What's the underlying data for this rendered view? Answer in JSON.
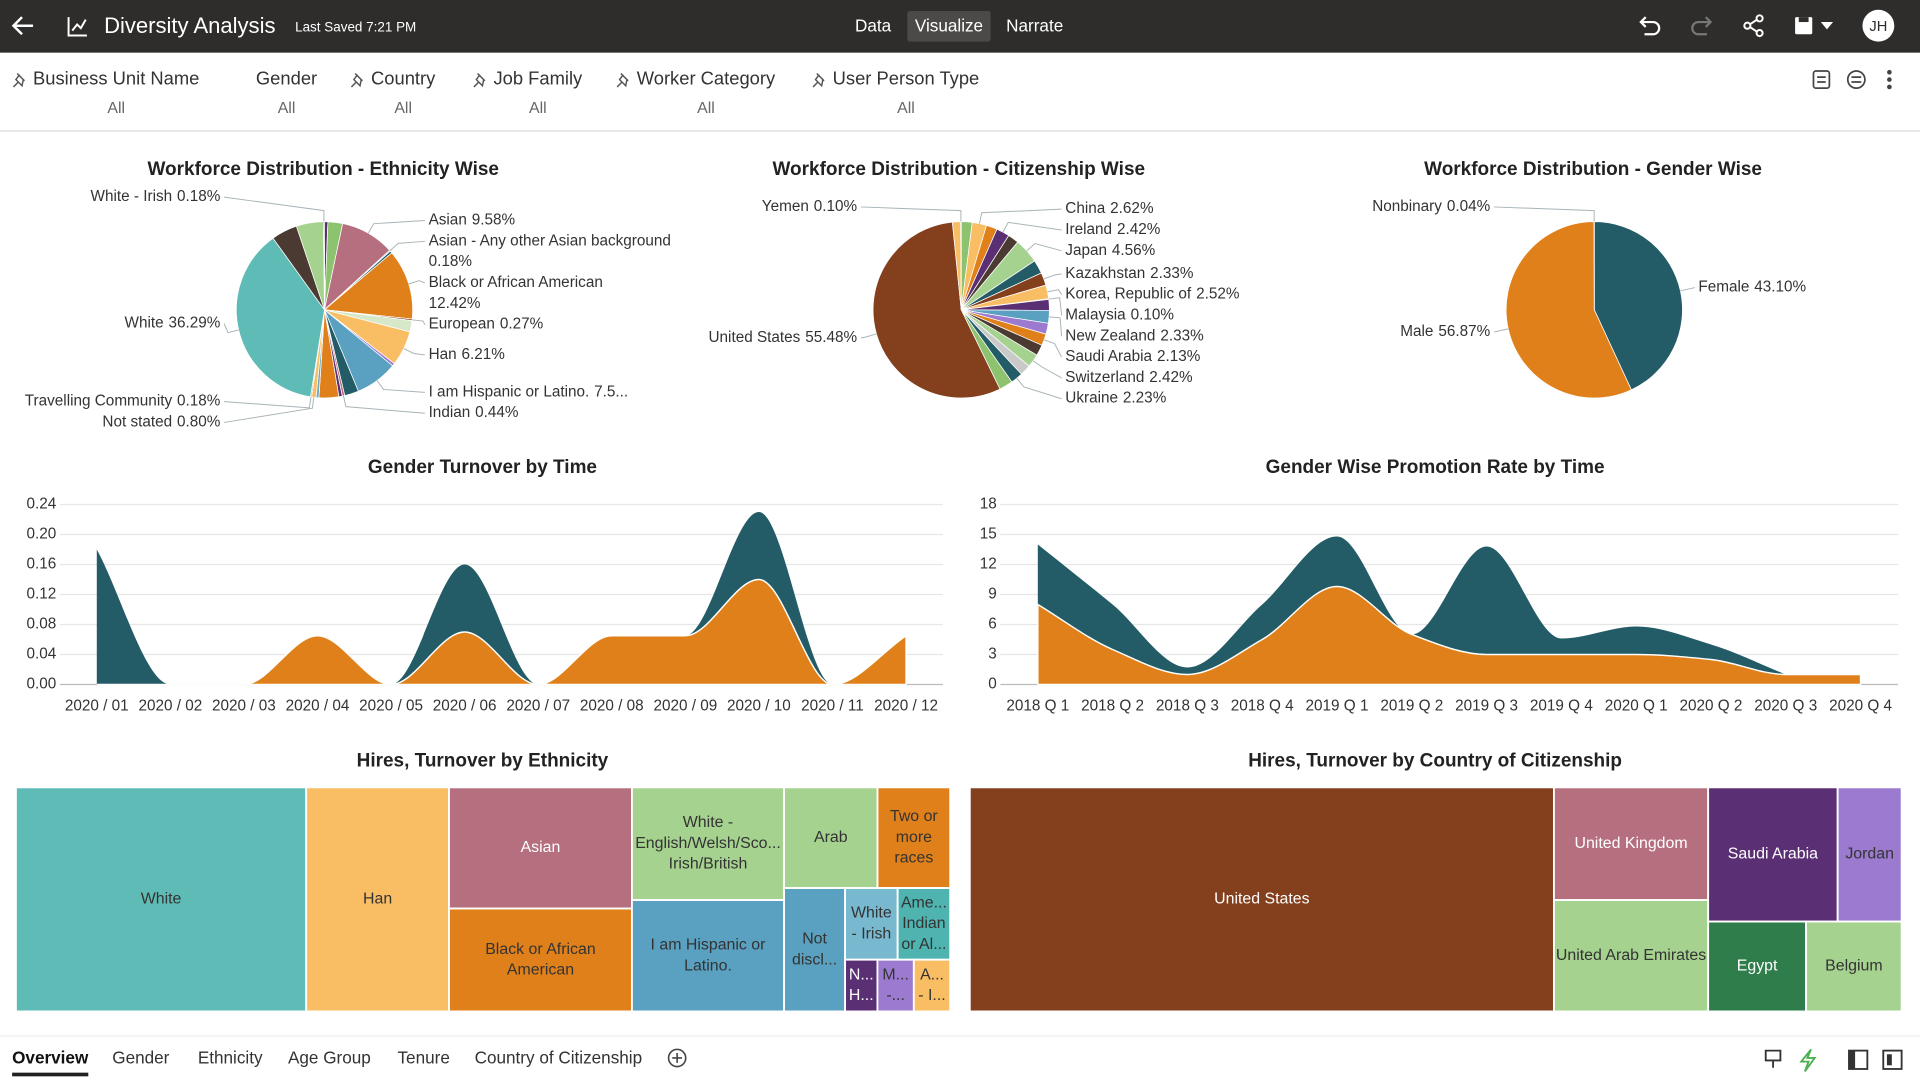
{
  "header": {
    "title": "Diversity Analysis",
    "last_saved": "Last Saved 7:21 PM",
    "tabs": [
      "Data",
      "Visualize",
      "Narrate"
    ],
    "active_tab": "Visualize",
    "user_initials": "JH"
  },
  "filters": [
    {
      "name": "Business Unit Name",
      "value": "All",
      "pinned": true
    },
    {
      "name": "Gender",
      "value": "All",
      "pinned": false
    },
    {
      "name": "Country",
      "value": "All",
      "pinned": true
    },
    {
      "name": "Job Family",
      "value": "All",
      "pinned": true
    },
    {
      "name": "Worker Category",
      "value": "All",
      "pinned": true
    },
    {
      "name": "User Person Type",
      "value": "All",
      "pinned": true
    }
  ],
  "chart_data": [
    {
      "type": "pie",
      "title": "Workforce Distribution - Ethnicity Wise",
      "categories": [
        null,
        null,
        "Asian",
        "Asian - Any other Asian background",
        null,
        "Black or African American",
        "European",
        null,
        "Han",
        null,
        "I am Hispanic or Latino.",
        null,
        "Indian",
        null,
        null,
        null,
        "Not stated",
        "Travelling Community",
        "White",
        null,
        null,
        "White - Irish"
      ],
      "values": [
        0.6,
        2.6,
        9.58,
        0.18,
        0.4,
        12.42,
        0.27,
        2.0,
        6.21,
        0.5,
        7.5,
        2.5,
        0.44,
        0.6,
        3.5,
        0.5,
        0.8,
        0.18,
        36.29,
        4.6,
        4.8,
        0.18
      ],
      "value_labels": [
        null,
        null,
        "9.58%",
        "0.18%",
        null,
        "12.42%",
        "0.27%",
        null,
        "6.21%",
        null,
        "7.5...",
        null,
        "0.44%",
        null,
        null,
        null,
        "0.80%",
        "0.18%",
        "36.29%",
        null,
        null,
        "0.18%"
      ],
      "colors": [
        "#5b2f73",
        "#8dc26f",
        "#b56f7e",
        "#6aa9c0",
        "#235c66",
        "#e0801a",
        "#843f1d",
        "#d6e8c8",
        "#f9be64",
        "#9b7ad0",
        "#5aa0c0",
        "#235c66",
        "#b56f7e",
        "#5b2f73",
        "#e0801a",
        "#6aa9c0",
        "#f9be64",
        "#843f1d",
        "#5fbbb5",
        "#4a3a32",
        "#a6d28f",
        "#3d3d3d"
      ]
    },
    {
      "type": "pie",
      "title": "Workforce Distribution - Citizenship Wise",
      "categories": [
        null,
        "China",
        null,
        "Ireland",
        null,
        "Japan",
        null,
        "Kazakhstan",
        "Korea, Republic of",
        "Malaysia",
        null,
        "New Zealand",
        null,
        "Saudi Arabia",
        null,
        "Switzerland",
        null,
        "Ukraine",
        null,
        "United States",
        null,
        "Yemen"
      ],
      "values": [
        2,
        2.62,
        2,
        2.42,
        2,
        4.56,
        2.5,
        2.33,
        2.52,
        0.1,
        2,
        2.33,
        2,
        2.13,
        2,
        2.42,
        2,
        2.23,
        2.5,
        55.48,
        1.5,
        0.1
      ],
      "value_labels": [
        null,
        "2.62%",
        null,
        "2.42%",
        null,
        "4.56%",
        null,
        "2.33%",
        "2.52%",
        "0.10%",
        null,
        "2.33%",
        null,
        "2.13%",
        null,
        "2.42%",
        null,
        "2.23%",
        null,
        "55.48%",
        null,
        "0.10%"
      ],
      "colors": [
        "#8dc26f",
        "#f9be64",
        "#e0801a",
        "#5b2f73",
        "#4a3a32",
        "#a6d28f",
        "#235c66",
        "#843f1d",
        "#f9be64",
        "#b56f7e",
        "#5b2f73",
        "#5aa0c0",
        "#9b7ad0",
        "#e0801a",
        "#4a3a32",
        "#a6d28f",
        "#c9c9c9",
        "#235c66",
        "#8dc26f",
        "#843f1d",
        "#f9be64",
        "#b56f7e"
      ]
    },
    {
      "type": "pie",
      "title": "Workforce Distribution - Gender Wise",
      "categories": [
        "Female",
        "Male",
        "Nonbinary"
      ],
      "values": [
        43.1,
        56.87,
        0.04
      ],
      "value_labels": [
        "43.10%",
        "56.87%",
        "0.04%"
      ],
      "colors": [
        "#235c66",
        "#e0801a",
        "#ffffff"
      ]
    },
    {
      "type": "area",
      "title": "Gender Turnover by Time",
      "categories": [
        "2020 / 01",
        "2020 / 02",
        "2020 / 03",
        "2020 / 04",
        "2020 / 05",
        "2020 / 06",
        "2020 / 07",
        "2020 / 08",
        "2020 / 09",
        "2020 / 10",
        "2020 / 11",
        "2020 / 12"
      ],
      "series": [
        {
          "color": "#235c66",
          "values": [
            0.18,
            0,
            0,
            0.065,
            0,
            0.16,
            0,
            0.065,
            0.065,
            0.23,
            0,
            0.065
          ]
        },
        {
          "color": "#e0801a",
          "values": [
            0,
            0,
            0,
            0.065,
            0,
            0.07,
            0,
            0.065,
            0.065,
            0.14,
            0,
            0.065
          ]
        }
      ],
      "ylim": [
        0,
        0.24
      ],
      "yticks": [
        {
          "value": 0,
          "label": "0.00"
        },
        0.04,
        0.08,
        0.12,
        0.16,
        {
          "value": 0.2,
          "label": "0.20"
        },
        0.24
      ],
      "grid": true
    },
    {
      "type": "area",
      "title": "Gender Wise Promotion Rate by Time",
      "categories": [
        "2018 Q 1",
        "2018 Q 2",
        "2018 Q 3",
        "2018 Q 4",
        "2019 Q 1",
        "2019 Q 2",
        "2019 Q 3",
        "2019 Q 4",
        "2020 Q 1",
        "2020 Q 2",
        "2020 Q 3",
        "2020 Q 4"
      ],
      "series": [
        {
          "color": "#235c66",
          "values": [
            14,
            8,
            1.7,
            8,
            14.8,
            5,
            13.8,
            4.6,
            5.8,
            4,
            1,
            null
          ]
        },
        {
          "color": "#e0801a",
          "values": [
            8,
            3.5,
            1,
            4.5,
            9.8,
            5,
            3,
            3,
            3,
            2.5,
            1,
            1
          ]
        }
      ],
      "ylim": [
        0,
        18
      ],
      "yticks": [
        0,
        3,
        6,
        9,
        12,
        15,
        18
      ],
      "grid": true
    },
    {
      "type": "treemap",
      "title": "Hires, Turnover by Ethnicity",
      "categories": [
        [
          "White"
        ],
        [
          "Han"
        ],
        [
          "Asian"
        ],
        [
          "Black or African",
          "American"
        ],
        [
          "White -",
          "English/Welsh/Sco...",
          "Irish/British"
        ],
        [
          "I am Hispanic or",
          "Latino."
        ],
        [
          "Arab"
        ],
        [
          "Two or",
          "more",
          "races"
        ],
        [
          "Not",
          "discl..."
        ],
        [
          "White",
          "- Irish"
        ],
        [
          "Ame...",
          "Indian",
          "or Al..."
        ],
        [
          "N...",
          "H..."
        ],
        [
          "M...",
          "-..."
        ],
        [
          "A...",
          "- I..."
        ]
      ],
      "values": [
        31.1,
        15.3,
        10.6,
        9.0,
        8.2,
        8.1,
        4.5,
        3.5,
        3.6,
        1.8,
        1.8,
        0.8,
        0.9,
        0.9
      ],
      "colors": [
        "#5fbbb5",
        "#f9be64",
        "#b56f7e",
        "#e0801a",
        "#a6d28f",
        "#5aa0c0",
        "#a6d28f",
        "#e0801a",
        "#5aa0c0",
        "#79b9d0",
        "#4fb3b0",
        "#5b2f73",
        "#9b7ad0",
        "#f9be64"
      ]
    },
    {
      "type": "treemap",
      "title": "Hires, Turnover by Country of Citizenship",
      "categories": [
        [
          "United States"
        ],
        [
          "United Kingdom"
        ],
        [
          "United Arab Emirates"
        ],
        [
          "Saudi Arabia"
        ],
        [
          "Jordan"
        ],
        [
          "Egypt"
        ],
        [
          "Belgium"
        ]
      ],
      "values": [
        62.5,
        8.3,
        8.2,
        8.3,
        4.1,
        4.2,
        4.1
      ],
      "colors": [
        "#843f1d",
        "#b56f7e",
        "#a6d28f",
        "#5b2f73",
        "#9b7ad0",
        "#2e7d4a",
        "#a6d28f"
      ]
    }
  ],
  "sheet_tabs": [
    "Overview",
    "Gender",
    "Ethnicity",
    "Age Group",
    "Tenure",
    "Country of Citizenship"
  ],
  "active_sheet": "Overview"
}
